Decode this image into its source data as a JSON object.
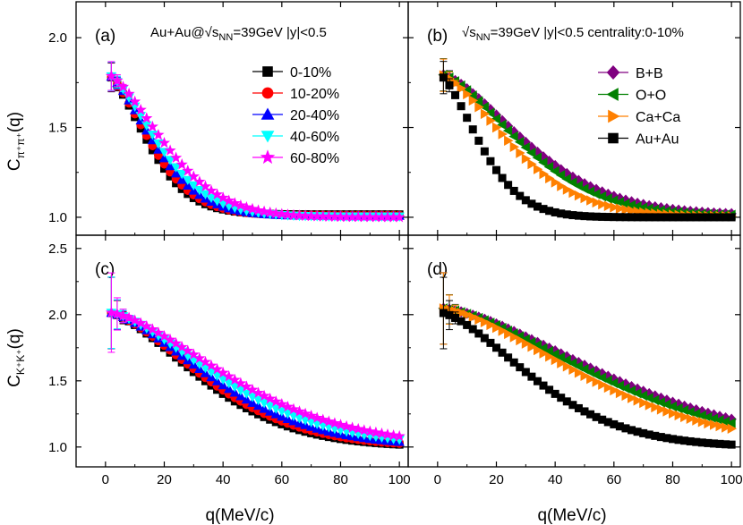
{
  "figure": {
    "xlabel": "q(MeV/c)",
    "ylabel_top": {
      "base": "C",
      "sub": "π⁺π⁺",
      "tail": "(q)"
    },
    "ylabel_bottom": {
      "base": "C",
      "sub": "K⁺K⁺",
      "tail": "(q)"
    },
    "colors": {
      "black": "#000000",
      "red": "#ff0000",
      "blue": "#0000ff",
      "cyan": "#00ffff",
      "magenta": "#ff00ff",
      "purple": "#800080",
      "green": "#008000",
      "orange": "#ff8000"
    }
  },
  "chart_data": [
    {
      "panel": "a",
      "type": "scatter",
      "tag": "(a)",
      "annotation": {
        "pre": "Au+Au@√s",
        "sub": "NN",
        "post": "=39GeV |y|<0.5"
      },
      "xlim": [
        -10,
        103
      ],
      "ylim": [
        0.9,
        2.2
      ],
      "xticks": [
        0,
        20,
        40,
        60,
        80,
        100
      ],
      "yticks": [
        1.0,
        1.5,
        2.0
      ],
      "xticklabels": [
        "0",
        "20",
        "40",
        "60",
        "80",
        "100"
      ],
      "yticklabels": [
        "1.0",
        "1.5",
        "2.0"
      ],
      "x": [
        2,
        4,
        6,
        8,
        10,
        12,
        14,
        16,
        18,
        20,
        22,
        24,
        26,
        28,
        30,
        32,
        34,
        36,
        38,
        40,
        42,
        44,
        46,
        48,
        50,
        52,
        54,
        56,
        58,
        60,
        62,
        64,
        66,
        68,
        70,
        72,
        74,
        76,
        78,
        80,
        82,
        84,
        86,
        88,
        90,
        92,
        94,
        96,
        98,
        100
      ],
      "series": [
        {
          "name": "0-10%",
          "marker": "square",
          "color": "#000000",
          "legend_marker": "square",
          "a0": 0.8,
          "w": 8.5,
          "err": 0.08
        },
        {
          "name": "10-20%",
          "marker": "circle",
          "color": "#ff0000",
          "legend_marker": "circle",
          "a0": 0.8,
          "w": 9.0,
          "err": 0.08
        },
        {
          "name": "20-40%",
          "marker": "triangle-up",
          "color": "#0000ff",
          "legend_marker": "triangle-up",
          "a0": 0.8,
          "w": 9.7,
          "err": 0.08
        },
        {
          "name": "40-60%",
          "marker": "triangle-down",
          "color": "#00ffff",
          "legend_marker": "triangle-down",
          "a0": 0.8,
          "w": 10.5,
          "err": 0.08
        },
        {
          "name": "60-80%",
          "marker": "star",
          "color": "#ff00ff",
          "legend_marker": "star",
          "a0": 0.8,
          "w": 11.8,
          "err": 0.08
        }
      ],
      "offsets": [
        0.016,
        0.012,
        0.008,
        0.004,
        0.0
      ],
      "legend": "top-right"
    },
    {
      "panel": "b",
      "type": "scatter",
      "tag": "(b)",
      "annotation": {
        "pre": "√s",
        "sub": "NN",
        "post": "=39GeV |y|<0.5 centrality:0-10%"
      },
      "xlim": [
        -10,
        103
      ],
      "ylim": [
        0.9,
        2.2
      ],
      "xticks": [
        0,
        20,
        40,
        60,
        80,
        100
      ],
      "yticks": [
        1.0,
        1.5,
        2.0
      ],
      "xticklabels": [
        "0",
        "20",
        "40",
        "60",
        "80",
        "100"
      ],
      "yticklabels": [
        "1.0",
        "1.5",
        "2.0"
      ],
      "x": [
        2,
        4,
        6,
        8,
        10,
        12,
        14,
        16,
        18,
        20,
        22,
        24,
        26,
        28,
        30,
        32,
        34,
        36,
        38,
        40,
        42,
        44,
        46,
        48,
        50,
        52,
        54,
        56,
        58,
        60,
        62,
        64,
        66,
        68,
        70,
        72,
        74,
        76,
        78,
        80,
        82,
        84,
        86,
        88,
        90,
        92,
        94,
        96,
        98,
        100
      ],
      "series": [
        {
          "name": "B+B",
          "marker": "diamond",
          "color": "#800080",
          "legend_marker": "diamond",
          "a0": 0.8,
          "w": 17.5,
          "err": 0.09
        },
        {
          "name": "O+O",
          "marker": "triangle-left",
          "color": "#008000",
          "legend_marker": "triangle-left",
          "a0": 0.8,
          "w": 16.5,
          "err": 0.09
        },
        {
          "name": "Ca+Ca",
          "marker": "triangle-right",
          "color": "#ff8000",
          "legend_marker": "triangle-right",
          "a0": 0.8,
          "w": 14.5,
          "err": 0.09
        },
        {
          "name": "Au+Au",
          "marker": "square",
          "color": "#000000",
          "legend_marker": "square",
          "a0": 0.8,
          "w": 8.5,
          "err": 0.09
        }
      ],
      "offsets": [
        0.012,
        0.008,
        0.004,
        0.0
      ],
      "legend": "top-right"
    },
    {
      "panel": "c",
      "type": "scatter",
      "tag": "(c)",
      "xlim": [
        -10,
        103
      ],
      "ylim": [
        0.85,
        2.6
      ],
      "xticks": [
        0,
        20,
        40,
        60,
        80,
        100
      ],
      "yticks": [
        1.0,
        1.5,
        2.0,
        2.5
      ],
      "xticklabels": [
        "0",
        "20",
        "40",
        "60",
        "80",
        "100"
      ],
      "yticklabels": [
        "1.0",
        "1.5",
        "2.0",
        "2.5"
      ],
      "x": [
        2,
        4,
        6,
        8,
        10,
        12,
        14,
        16,
        18,
        20,
        22,
        24,
        26,
        28,
        30,
        32,
        34,
        36,
        38,
        40,
        42,
        44,
        46,
        48,
        50,
        52,
        54,
        56,
        58,
        60,
        62,
        64,
        66,
        68,
        70,
        72,
        74,
        76,
        78,
        80,
        82,
        84,
        86,
        88,
        90,
        92,
        94,
        96,
        98,
        100
      ],
      "series": [
        {
          "name": "0-10%",
          "marker": "square",
          "color": "#000000",
          "a0": 1.02,
          "w": 19.0,
          "err": 0.27
        },
        {
          "name": "10-20%",
          "marker": "circle",
          "color": "#ff0000",
          "a0": 1.02,
          "w": 19.8,
          "err": 0.27
        },
        {
          "name": "20-40%",
          "marker": "triangle-up",
          "color": "#0000ff",
          "a0": 1.02,
          "w": 21.0,
          "err": 0.27
        },
        {
          "name": "40-60%",
          "marker": "triangle-down",
          "color": "#00ffff",
          "a0": 1.02,
          "w": 22.5,
          "err": 0.27
        },
        {
          "name": "60-80%",
          "marker": "star",
          "color": "#ff00ff",
          "a0": 1.02,
          "w": 24.5,
          "err": 0.3
        }
      ],
      "offsets": [
        0.0,
        0.003,
        0.006,
        0.009,
        0.012
      ]
    },
    {
      "panel": "d",
      "type": "scatter",
      "tag": "(d)",
      "xlim": [
        -10,
        103
      ],
      "ylim": [
        0.85,
        2.6
      ],
      "xticks": [
        0,
        20,
        40,
        60,
        80,
        100
      ],
      "yticks": [
        1.0,
        1.5,
        2.0,
        2.5
      ],
      "xticklabels": [
        "0",
        "20",
        "40",
        "60",
        "80",
        "100"
      ],
      "yticklabels": [
        "1.0",
        "1.5",
        "2.0",
        "2.5"
      ],
      "x": [
        2,
        4,
        6,
        8,
        10,
        12,
        14,
        16,
        18,
        20,
        22,
        24,
        26,
        28,
        30,
        32,
        34,
        36,
        38,
        40,
        42,
        44,
        46,
        48,
        50,
        52,
        54,
        56,
        58,
        60,
        62,
        64,
        66,
        68,
        70,
        72,
        74,
        76,
        78,
        80,
        82,
        84,
        86,
        88,
        90,
        92,
        94,
        96,
        98,
        100
      ],
      "series": [
        {
          "name": "B+B",
          "marker": "diamond",
          "color": "#800080",
          "a0": 1.05,
          "w": 33.0,
          "err": 0.27
        },
        {
          "name": "O+O",
          "marker": "triangle-left",
          "color": "#008000",
          "a0": 1.05,
          "w": 31.5,
          "err": 0.27
        },
        {
          "name": "Ca+Ca",
          "marker": "triangle-right",
          "color": "#ff8000",
          "a0": 1.05,
          "w": 29.0,
          "err": 0.27
        },
        {
          "name": "Au+Au",
          "marker": "square",
          "color": "#000000",
          "a0": 1.02,
          "w": 19.0,
          "err": 0.27
        }
      ],
      "offsets": [
        0.012,
        0.008,
        0.004,
        0.0
      ]
    }
  ]
}
